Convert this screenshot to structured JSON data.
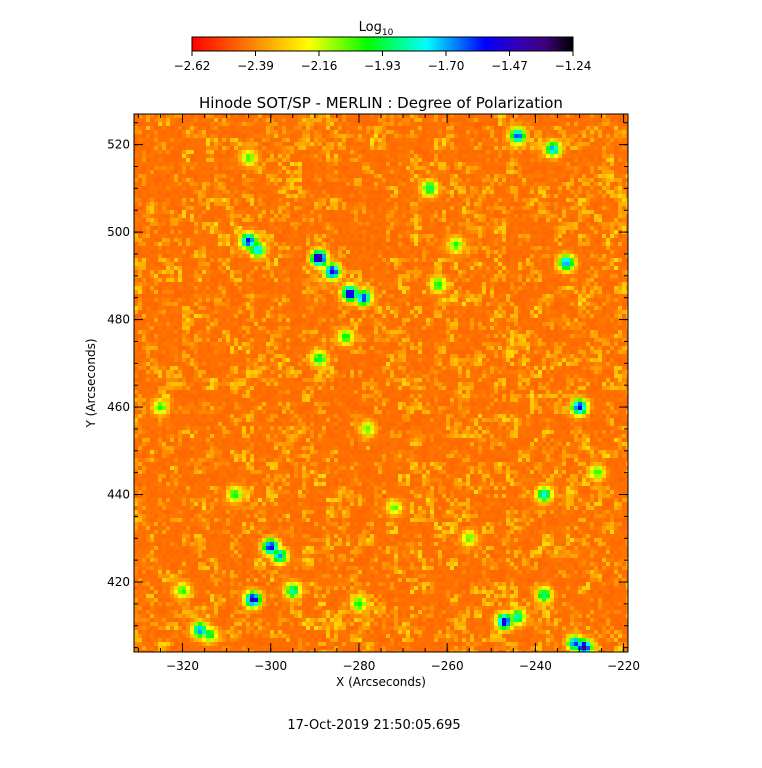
{
  "chart_data": {
    "type": "heatmap",
    "title": "Hinode SOT/SP - MERLIN : Degree of Polarization",
    "xlabel": "X (Arcseconds)",
    "ylabel": "Y (Arcseconds)",
    "xlim": [
      -331,
      -219
    ],
    "ylim": [
      404,
      527
    ],
    "x_ticks": [
      -320,
      -300,
      -280,
      -260,
      -240,
      -220
    ],
    "x_tick_labels": [
      "−320",
      "−300",
      "−280",
      "−260",
      "−240",
      "−220"
    ],
    "y_ticks": [
      420,
      440,
      460,
      480,
      500,
      520
    ],
    "y_tick_labels": [
      "420",
      "440",
      "460",
      "480",
      "500",
      "520"
    ],
    "colorbar": {
      "title_base": "Log",
      "title_sub": "10",
      "range": [
        -2.62,
        -1.24
      ],
      "ticks": [
        -2.62,
        -2.39,
        -2.16,
        -1.93,
        -1.7,
        -1.47,
        -1.24
      ],
      "tick_labels": [
        "−2.62",
        "−2.39",
        "−2.16",
        "−1.93",
        "−1.70",
        "−1.47",
        "−1.24"
      ],
      "colormap": [
        "#ff0000",
        "#ff4000",
        "#ff8000",
        "#ffc000",
        "#ffff00",
        "#80ff00",
        "#00ff00",
        "#00ff80",
        "#00ffff",
        "#0080ff",
        "#0000ff",
        "#3000c0",
        "#400080",
        "#000000"
      ]
    },
    "background_level": -2.45,
    "features": [
      {
        "x": -289,
        "y": 494,
        "level": -1.3
      },
      {
        "x": -286,
        "y": 491,
        "level": -1.45
      },
      {
        "x": -282,
        "y": 486,
        "level": -1.4
      },
      {
        "x": -279,
        "y": 485,
        "level": -1.55
      },
      {
        "x": -305,
        "y": 498,
        "level": -1.5
      },
      {
        "x": -303,
        "y": 496,
        "level": -1.7
      },
      {
        "x": -300,
        "y": 428,
        "level": -1.45
      },
      {
        "x": -298,
        "y": 426,
        "level": -1.7
      },
      {
        "x": -304,
        "y": 416,
        "level": -1.4
      },
      {
        "x": -295,
        "y": 418,
        "level": -1.8
      },
      {
        "x": -316,
        "y": 409,
        "level": -1.65
      },
      {
        "x": -314,
        "y": 408,
        "level": -1.9
      },
      {
        "x": -229,
        "y": 405,
        "level": -1.35
      },
      {
        "x": -231,
        "y": 406,
        "level": -1.6
      },
      {
        "x": -247,
        "y": 411,
        "level": -1.45
      },
      {
        "x": -244,
        "y": 412,
        "level": -1.8
      },
      {
        "x": -230,
        "y": 460,
        "level": -1.5
      },
      {
        "x": -244,
        "y": 522,
        "level": -1.6
      },
      {
        "x": -236,
        "y": 519,
        "level": -1.7
      },
      {
        "x": -233,
        "y": 493,
        "level": -1.65
      },
      {
        "x": -238,
        "y": 440,
        "level": -1.75
      },
      {
        "x": -238,
        "y": 417,
        "level": -1.85
      },
      {
        "x": -283,
        "y": 476,
        "level": -1.95
      },
      {
        "x": -289,
        "y": 471,
        "level": -1.9
      },
      {
        "x": -264,
        "y": 510,
        "level": -1.85
      },
      {
        "x": -262,
        "y": 488,
        "level": -1.95
      },
      {
        "x": -258,
        "y": 497,
        "level": -2.0
      },
      {
        "x": -325,
        "y": 460,
        "level": -2.0
      },
      {
        "x": -308,
        "y": 440,
        "level": -1.95
      },
      {
        "x": -280,
        "y": 415,
        "level": -1.95
      },
      {
        "x": -320,
        "y": 418,
        "level": -2.0
      },
      {
        "x": -226,
        "y": 445,
        "level": -2.0
      },
      {
        "x": -272,
        "y": 437,
        "level": -2.05
      },
      {
        "x": -305,
        "y": 517,
        "level": -2.0
      },
      {
        "x": -278,
        "y": 455,
        "level": -2.05
      },
      {
        "x": -255,
        "y": 430,
        "level": -2.05
      }
    ],
    "timestamp": "17-Oct-2019 21:50:05.695"
  }
}
